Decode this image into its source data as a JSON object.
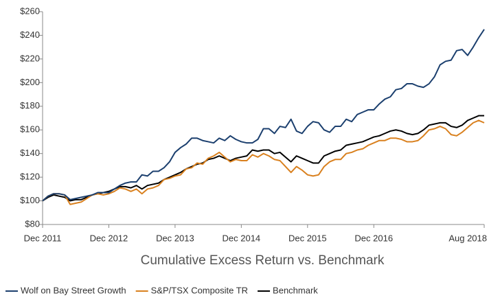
{
  "chart_data": {
    "type": "line",
    "title": "Cumulative Excess Return vs. Benchmark",
    "categories": [
      "Dec 2011",
      null,
      null,
      null,
      null,
      null,
      null,
      null,
      null,
      null,
      null,
      null,
      "Dec 2012",
      null,
      null,
      null,
      null,
      null,
      null,
      null,
      null,
      null,
      null,
      null,
      "Dec 2013",
      null,
      null,
      null,
      null,
      null,
      null,
      null,
      null,
      null,
      null,
      null,
      "Dec 2014",
      null,
      null,
      null,
      null,
      null,
      null,
      null,
      null,
      null,
      null,
      null,
      "Dec 2015",
      null,
      null,
      null,
      null,
      null,
      null,
      null,
      null,
      null,
      null,
      null,
      "Dec 2016",
      null,
      null,
      null,
      null,
      null,
      null,
      null,
      null,
      null,
      null,
      null,
      null,
      null,
      null,
      null,
      null,
      null,
      null,
      null,
      "Aug 2018"
    ],
    "series": [
      {
        "name": "Wolf on Bay Street Growth",
        "color": "#1b3f6e",
        "values": [
          100,
          104,
          106,
          106,
          105,
          101,
          102,
          103,
          104,
          105,
          107,
          107,
          107,
          110,
          113,
          115,
          116,
          116,
          122,
          121,
          125,
          125,
          128,
          133,
          141,
          145,
          148,
          153,
          153,
          151,
          150,
          149,
          153,
          151,
          155,
          152,
          150,
          149,
          149,
          152,
          161,
          161,
          157,
          163,
          162,
          169,
          159,
          157,
          163,
          167,
          166,
          160,
          158,
          163,
          163,
          169,
          167,
          173,
          175,
          177,
          177,
          182,
          186,
          188,
          194,
          195,
          199,
          199,
          197,
          196,
          199,
          205,
          215,
          218,
          219,
          227,
          228,
          223,
          230,
          238,
          245
        ]
      },
      {
        "name": "S&P/TSX Composite TR",
        "color": "#d9801e",
        "values": [
          100,
          104,
          106,
          106,
          105,
          97,
          98,
          99,
          102,
          105,
          106,
          105,
          106,
          108,
          111,
          110,
          108,
          110,
          106,
          110,
          111,
          113,
          118,
          119,
          121,
          122,
          127,
          128,
          132,
          131,
          136,
          138,
          141,
          137,
          133,
          135,
          134,
          134,
          139,
          137,
          140,
          138,
          135,
          134,
          129,
          124,
          129,
          126,
          122,
          121,
          122,
          129,
          133,
          135,
          135,
          140,
          141,
          143,
          144,
          147,
          149,
          151,
          151,
          153,
          153,
          152,
          150,
          150,
          151,
          155,
          160,
          161,
          163,
          161,
          156,
          155,
          158,
          162,
          166,
          168,
          166
        ]
      },
      {
        "name": "Benchmark",
        "color": "#000000",
        "values": [
          100,
          103,
          105,
          104,
          103,
          100,
          101,
          101,
          103,
          105,
          106,
          107,
          108,
          110,
          112,
          112,
          111,
          113,
          110,
          113,
          114,
          115,
          118,
          120,
          122,
          124,
          127,
          129,
          131,
          132,
          135,
          136,
          138,
          136,
          134,
          136,
          137,
          138,
          143,
          142,
          143,
          143,
          140,
          141,
          137,
          133,
          138,
          136,
          134,
          132,
          132,
          138,
          140,
          142,
          143,
          147,
          148,
          149,
          150,
          152,
          154,
          155,
          157,
          159,
          160,
          159,
          157,
          156,
          157,
          160,
          164,
          165,
          166,
          166,
          163,
          162,
          164,
          168,
          170,
          172,
          172
        ]
      }
    ],
    "ylim": [
      80,
      260
    ],
    "yticks": [
      {
        "value": 80,
        "label": "$80"
      },
      {
        "value": 100,
        "label": "$100"
      },
      {
        "value": 120,
        "label": "$120"
      },
      {
        "value": 140,
        "label": "$140"
      },
      {
        "value": 160,
        "label": "$160"
      },
      {
        "value": 180,
        "label": "$180"
      },
      {
        "value": 200,
        "label": "$200"
      },
      {
        "value": 220,
        "label": "$220"
      },
      {
        "value": 240,
        "label": "$240"
      },
      {
        "value": 260,
        "label": "$260"
      }
    ],
    "legend": "bottom-left"
  }
}
